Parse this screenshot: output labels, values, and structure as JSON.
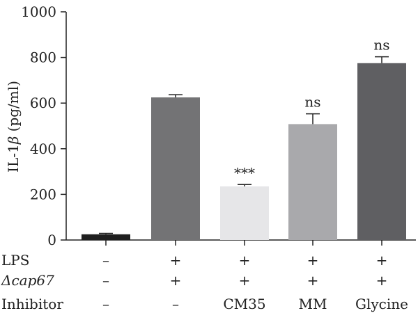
{
  "chart_data": {
    "type": "bar",
    "ylabel_prefix": "IL-1",
    "ylabel_symbol": "β",
    "ylabel_suffix": " (pg/ml)",
    "ylim": [
      0,
      1000
    ],
    "yticks": [
      0,
      200,
      400,
      600,
      800,
      1000
    ],
    "bars": [
      {
        "value": 25,
        "error": 4,
        "color": "#1f1f1f",
        "annotation": ""
      },
      {
        "value": 625,
        "error": 12,
        "color": "#737375",
        "annotation": ""
      },
      {
        "value": 235,
        "error": 8,
        "color": "#e6e6e8",
        "annotation": "***"
      },
      {
        "value": 508,
        "error": 45,
        "color": "#a9a9ac",
        "annotation": "ns"
      },
      {
        "value": 775,
        "error": 28,
        "color": "#5f5f62",
        "annotation": "ns"
      }
    ],
    "conditions": [
      {
        "label": "LPS",
        "italic": false,
        "values": [
          "–",
          "+",
          "+",
          "+",
          "+"
        ]
      },
      {
        "label": "Δcap67",
        "italic": true,
        "values": [
          "–",
          "+",
          "+",
          "+",
          "+"
        ]
      },
      {
        "label": "Inhibitor",
        "italic": false,
        "values": [
          "–",
          "–",
          "CM35",
          "MM",
          "Glycine"
        ]
      }
    ]
  }
}
